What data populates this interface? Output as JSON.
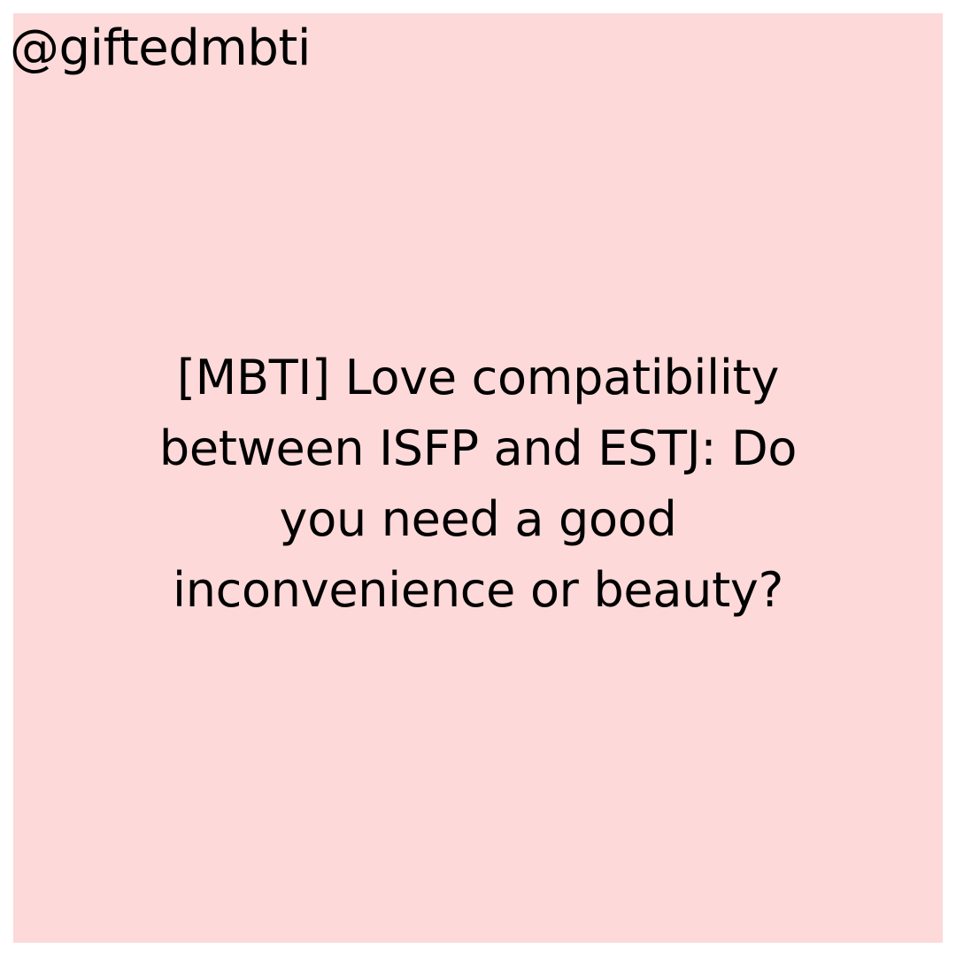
{
  "post": {
    "handle": "@giftedmbti",
    "headline": "[MBTI] Love compatibility between ISFP and ESTJ: Do you need a good inconvenience or beauty?"
  },
  "colors": {
    "card_background": "#fdd9d9",
    "page_background": "#ffffff",
    "text": "#000000"
  }
}
